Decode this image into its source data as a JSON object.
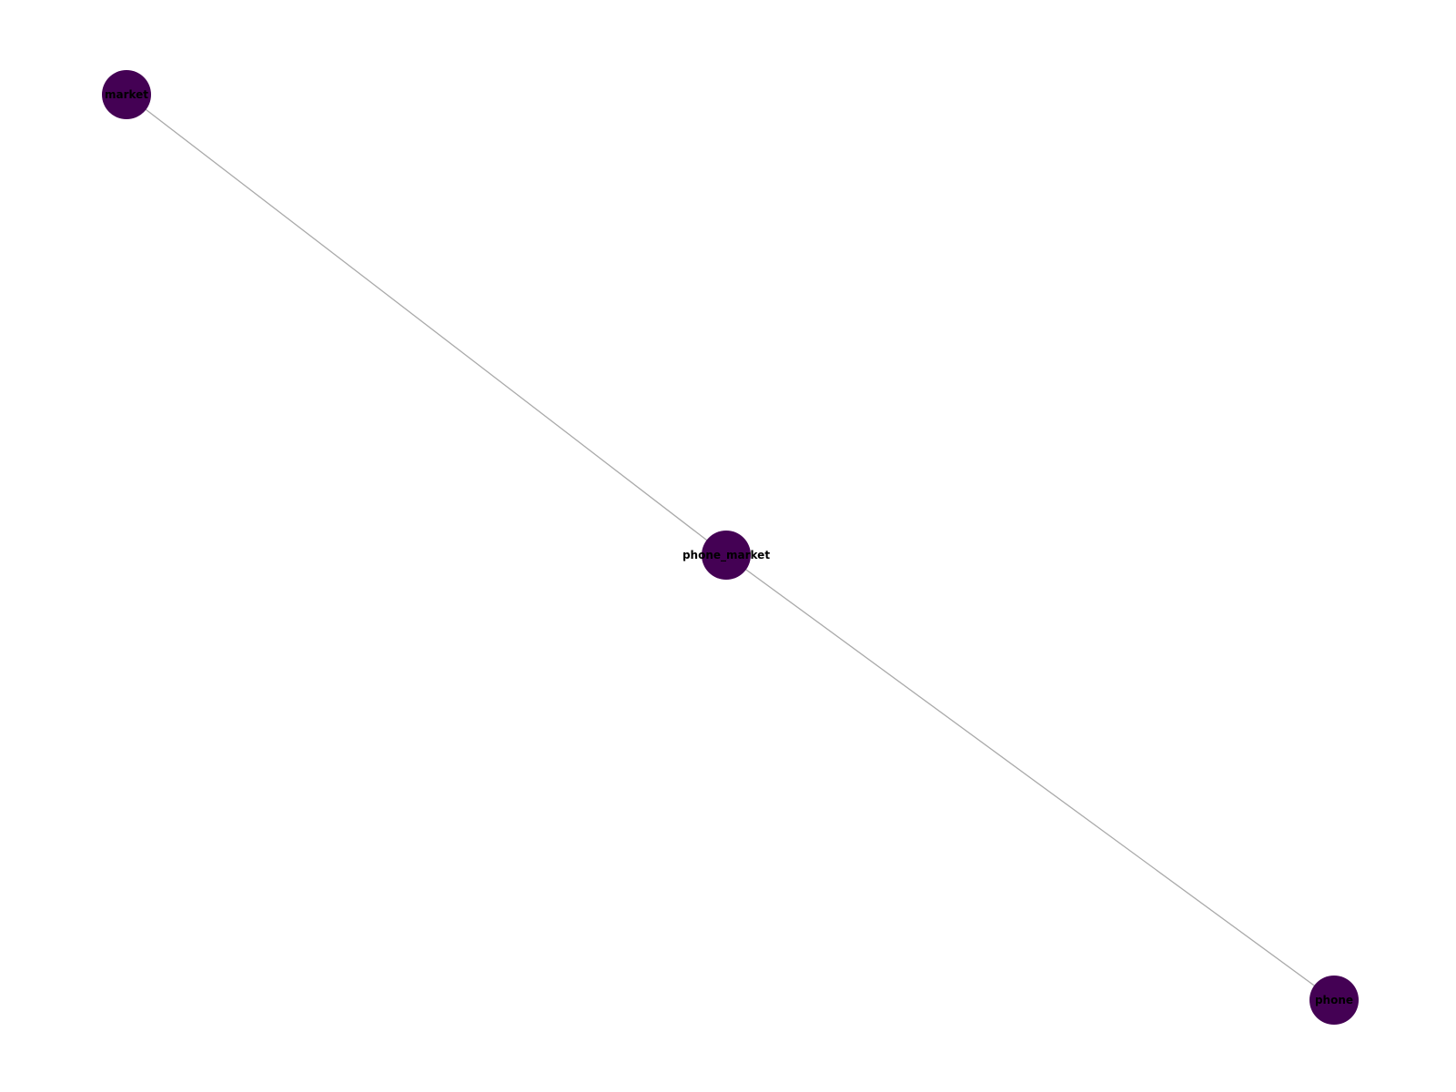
{
  "colors": {
    "node_fill": "#440154",
    "edge_stroke": "#aaaaaa",
    "label_text": "#000000",
    "background": "#ffffff"
  },
  "graph": {
    "nodes": [
      {
        "id": "market",
        "label": "market"
      },
      {
        "id": "phone_market",
        "label": "phone_market"
      },
      {
        "id": "phone",
        "label": "phone"
      }
    ],
    "edges": [
      {
        "source": "market",
        "target": "phone_market"
      },
      {
        "source": "phone_market",
        "target": "phone"
      }
    ]
  }
}
